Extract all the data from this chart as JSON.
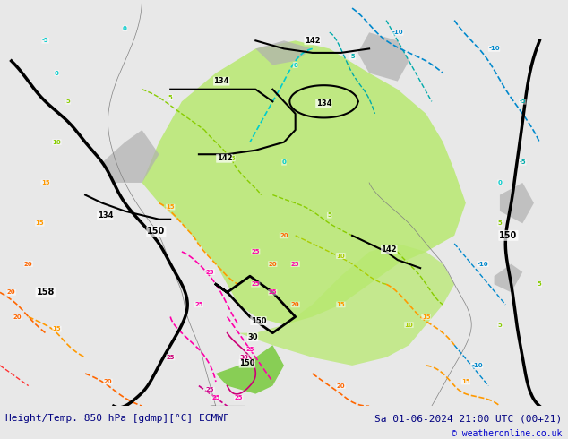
{
  "title_left": "Height/Temp. 850 hPa [gdmp][°C] ECMWF",
  "title_right": "Sa 01-06-2024 21:00 UTC (00+21)",
  "copyright": "© weatheronline.co.uk",
  "bg_color": "#e8e8e8",
  "map_bg_color": "#f0ede8",
  "footer_bg": "#d0d0d0",
  "footer_text_color": "#1a237e",
  "title_text_color": "#000080",
  "copyright_color": "#0000cc"
}
